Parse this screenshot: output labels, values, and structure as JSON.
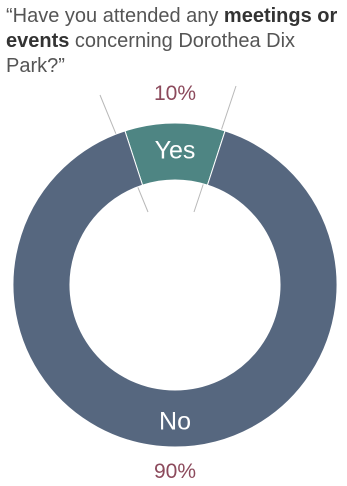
{
  "question": {
    "part1": "“Have you attended any ",
    "bold": "meetings or events",
    "part2": " concerning Dorothea Dix Park?”"
  },
  "colors": {
    "no": "#56677f",
    "yes": "#4e8583",
    "percent_text": "#8c4a5c",
    "question_text": "#555555",
    "leader_line": "#b8b8b8",
    "slice_label": "#ffffff"
  },
  "chart_data": {
    "type": "pie",
    "variant": "donut",
    "title": "“Have you attended any meetings or events concerning Dorothea Dix Park?”",
    "slices": [
      {
        "label": "Yes",
        "value": 10,
        "percent_label": "10%"
      },
      {
        "label": "No",
        "value": 90,
        "percent_label": "90%"
      }
    ]
  }
}
